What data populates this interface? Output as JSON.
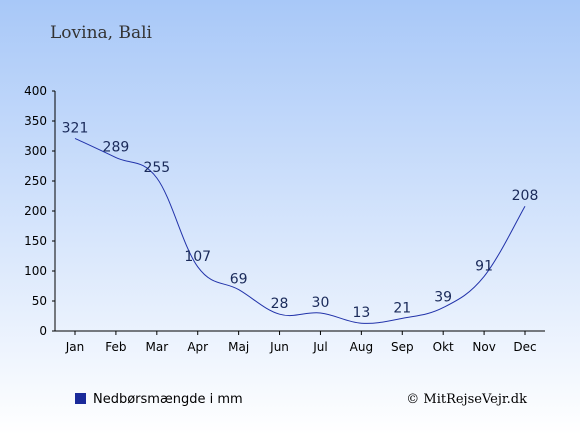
{
  "title": "Lovina, Bali",
  "legend": {
    "label": "Nedbørsmængde i mm",
    "color": "#1a2a9a"
  },
  "copyright": "© MitRejseVejr.dk",
  "colors": {
    "line": "#2233aa",
    "label": "#1a2a5a",
    "bg_top": "#a8c8f8",
    "bg_bottom": "#ffffff"
  },
  "chart_data": {
    "type": "line",
    "categories": [
      "Jan",
      "Feb",
      "Mar",
      "Apr",
      "Maj",
      "Jun",
      "Jul",
      "Aug",
      "Sep",
      "Okt",
      "Nov",
      "Dec"
    ],
    "series": [
      {
        "name": "Nedbørsmængde i mm",
        "values": [
          321,
          289,
          255,
          107,
          69,
          28,
          30,
          13,
          21,
          39,
          91,
          208
        ]
      }
    ],
    "yticks": [
      0,
      50,
      100,
      150,
      200,
      250,
      300,
      350,
      400
    ],
    "ylim": [
      0,
      400
    ],
    "legend_position": "bottom-left",
    "grid": false
  }
}
